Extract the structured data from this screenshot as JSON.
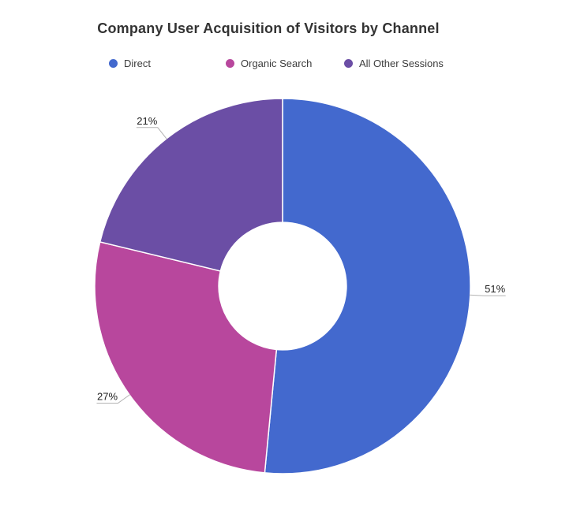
{
  "page": {
    "background_color": "#ffffff"
  },
  "chart_data": {
    "type": "pie",
    "variant": "donut",
    "title": "Company User Acquisition of Visitors by Channel",
    "categories": [
      "Direct",
      "Organic Search",
      "All Other Sessions"
    ],
    "values": [
      51,
      27,
      21
    ],
    "slice_labels": [
      "51%",
      "27%",
      "21%"
    ],
    "colors": [
      "#4369CE",
      "#B8479D",
      "#6B4EA5"
    ],
    "unit": "%",
    "start_angle_deg": 0,
    "direction": "clockwise",
    "inner_radius_ratio": 0.34,
    "legend_position": "top",
    "label_style": {
      "text_color": "#212121",
      "leader_line_color": "#b3b3b3",
      "slice_border_color": "#ffffff"
    }
  }
}
